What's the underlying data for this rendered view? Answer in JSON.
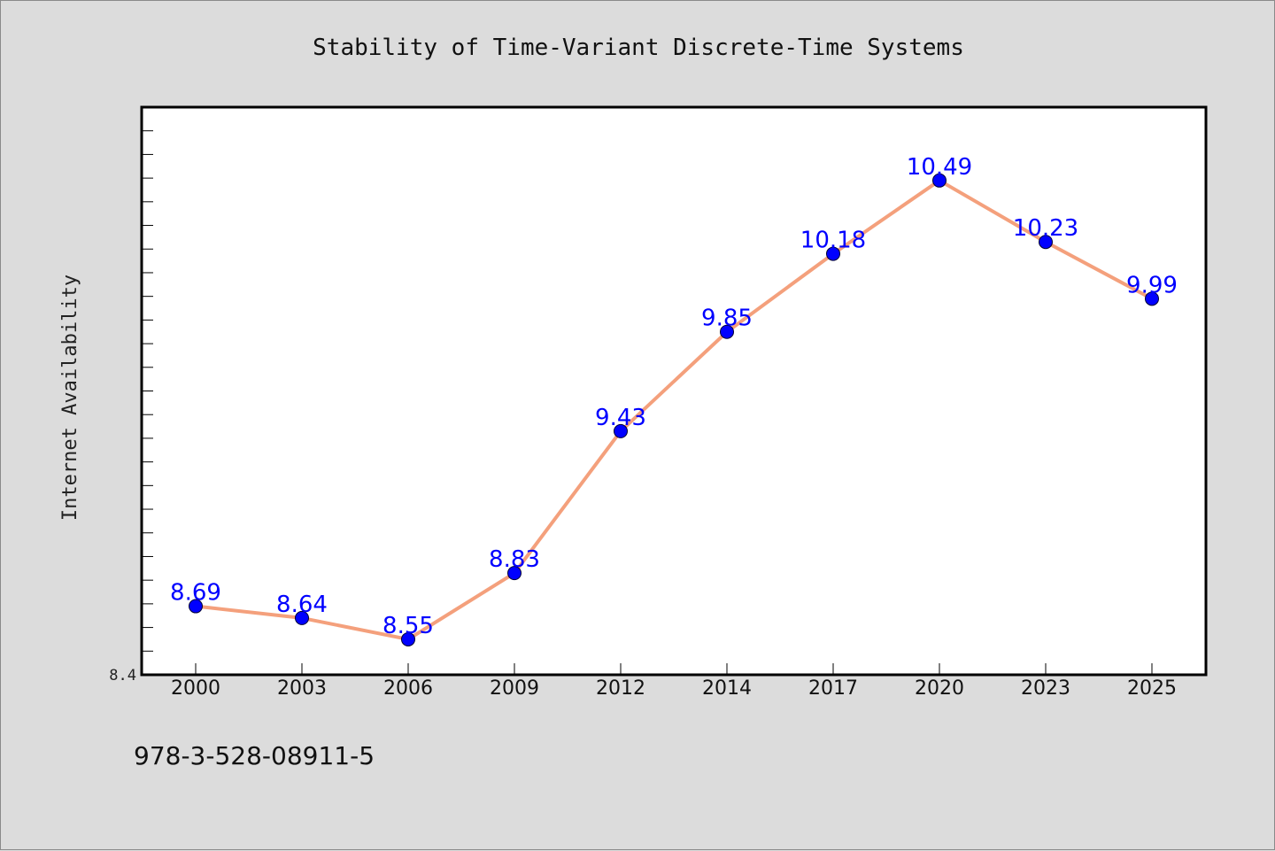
{
  "chart_data": {
    "type": "line",
    "title": "Stability of Time-Variant Discrete-Time Systems",
    "xlabel": "",
    "ylabel": "Internet Availability",
    "categories": [
      "2000",
      "2003",
      "2006",
      "2009",
      "2012",
      "2014",
      "2017",
      "2020",
      "2023",
      "2025"
    ],
    "series": [
      {
        "values": [
          8.69,
          8.64,
          8.55,
          8.83,
          9.43,
          9.85,
          10.18,
          10.49,
          10.23,
          9.99
        ],
        "line_color": "#f4a07c",
        "marker_color": "#0000ff"
      }
    ],
    "data_labels": [
      "8.69",
      "8.64",
      "8.55",
      "8.83",
      "9.43",
      "9.85",
      "10.18",
      "10.49",
      "10.23",
      "9.99"
    ],
    "ylim": [
      8.4,
      10.8
    ],
    "ytick_label": "8.4",
    "grid": false,
    "legend": "none"
  },
  "footer": {
    "isbn": "978-3-528-08911-5"
  },
  "colors": {
    "background": "#dcdcdc",
    "plot_area": "#ffffff",
    "line": "#f4a07c",
    "marker": "#0000ff",
    "data_label": "#0000ff"
  }
}
